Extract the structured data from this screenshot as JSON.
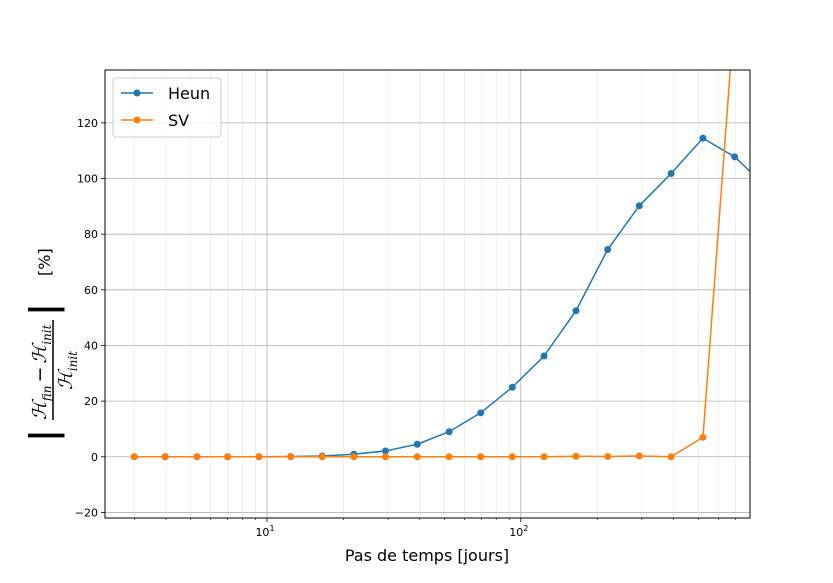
{
  "chart_data": {
    "type": "line",
    "xlabel": "Pas de temps [jours]",
    "ylabel_text": "[%]",
    "ylabel_formula": {
      "numerator_a": "ℋ",
      "numerator_a_sub": "fin",
      "minus": "−",
      "numerator_b": "ℋ",
      "numerator_b_sub": "init",
      "denominator": "ℋ",
      "denominator_sub": "init"
    },
    "xscale": "log",
    "xlim": [
      2.3,
      800
    ],
    "ylim": [
      -22,
      139
    ],
    "grid": true,
    "legend_position": "upper-left",
    "x_ticks": [
      {
        "value": 10,
        "base": "10",
        "exp": "1"
      },
      {
        "value": 100,
        "base": "10",
        "exp": "2"
      }
    ],
    "y_ticks": [
      -20,
      0,
      20,
      40,
      60,
      80,
      100,
      120
    ],
    "x": [
      3.0,
      3.97,
      5.3,
      7.0,
      9.3,
      12.4,
      16.5,
      22.0,
      29.3,
      39.1,
      52.2,
      69.5,
      92.6,
      123.5,
      165.0,
      220.0,
      293.0,
      391.0,
      522.0,
      696.0,
      928.0
    ],
    "series": [
      {
        "name": "Heun",
        "color": "#1f77b4",
        "values": [
          0.0,
          0.0,
          0.0,
          0.0,
          0.0,
          0.1,
          0.3,
          0.9,
          2.1,
          4.5,
          9.0,
          15.8,
          25.0,
          36.2,
          52.5,
          74.5,
          90.2,
          101.8,
          114.5,
          107.8,
          97.0
        ]
      },
      {
        "name": "SV",
        "color": "#ff7f0e",
        "values": [
          0.0,
          0.0,
          0.0,
          0.0,
          0.0,
          0.0,
          0.0,
          0.0,
          0.0,
          0.0,
          0.0,
          0.0,
          0.0,
          0.0,
          0.2,
          0.1,
          0.3,
          0.0,
          7.0,
          160.0,
          null
        ]
      }
    ]
  }
}
